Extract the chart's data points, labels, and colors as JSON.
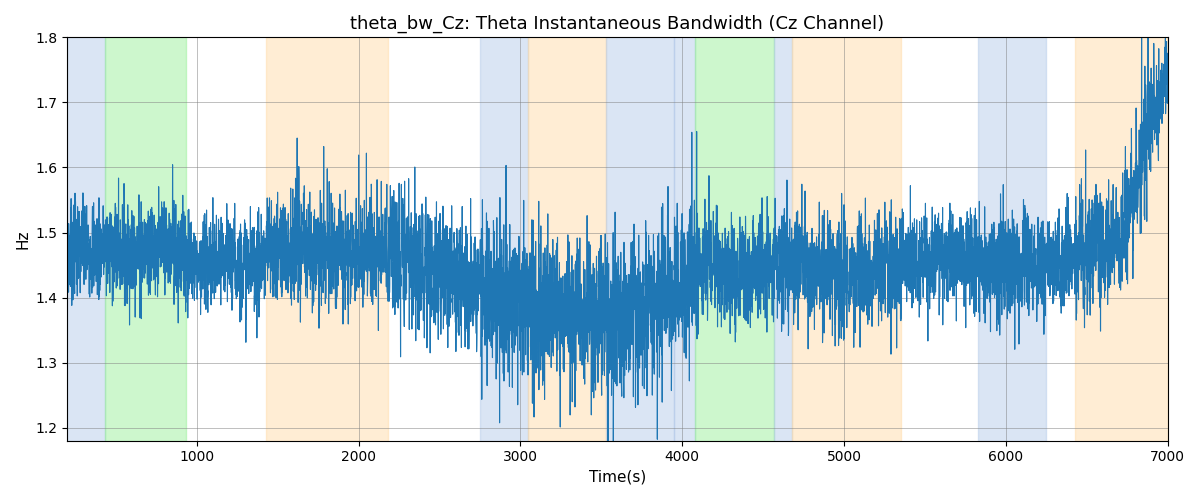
{
  "title": "theta_bw_Cz: Theta Instantaneous Bandwidth (Cz Channel)",
  "xlabel": "Time(s)",
  "ylabel": "Hz",
  "xlim": [
    200,
    7000
  ],
  "ylim": [
    1.18,
    1.8
  ],
  "bg_bands": [
    {
      "xmin": 200,
      "xmax": 430,
      "color": "#aec6e8",
      "alpha": 0.45
    },
    {
      "xmin": 430,
      "xmax": 930,
      "color": "#90ee90",
      "alpha": 0.45
    },
    {
      "xmin": 930,
      "xmax": 1430,
      "color": "#ffffff",
      "alpha": 0.0
    },
    {
      "xmin": 1430,
      "xmax": 2180,
      "color": "#ffd9a0",
      "alpha": 0.45
    },
    {
      "xmin": 2180,
      "xmax": 2750,
      "color": "#ffffff",
      "alpha": 0.0
    },
    {
      "xmin": 2750,
      "xmax": 3050,
      "color": "#aec6e8",
      "alpha": 0.45
    },
    {
      "xmin": 3050,
      "xmax": 3530,
      "color": "#ffd9a0",
      "alpha": 0.45
    },
    {
      "xmin": 3530,
      "xmax": 3950,
      "color": "#aec6e8",
      "alpha": 0.45
    },
    {
      "xmin": 3950,
      "xmax": 4080,
      "color": "#aec6e8",
      "alpha": 0.45
    },
    {
      "xmin": 4080,
      "xmax": 4570,
      "color": "#90ee90",
      "alpha": 0.45
    },
    {
      "xmin": 4570,
      "xmax": 4680,
      "color": "#aec6e8",
      "alpha": 0.45
    },
    {
      "xmin": 4680,
      "xmax": 5350,
      "color": "#ffd9a0",
      "alpha": 0.45
    },
    {
      "xmin": 5350,
      "xmax": 5830,
      "color": "#ffffff",
      "alpha": 0.0
    },
    {
      "xmin": 5830,
      "xmax": 6250,
      "color": "#aec6e8",
      "alpha": 0.45
    },
    {
      "xmin": 6250,
      "xmax": 6430,
      "color": "#ffffff",
      "alpha": 0.0
    },
    {
      "xmin": 6430,
      "xmax": 7000,
      "color": "#ffd9a0",
      "alpha": 0.45
    }
  ],
  "line_color": "#1f77b4",
  "line_width": 0.8,
  "seed": 7,
  "title_fontsize": 13
}
